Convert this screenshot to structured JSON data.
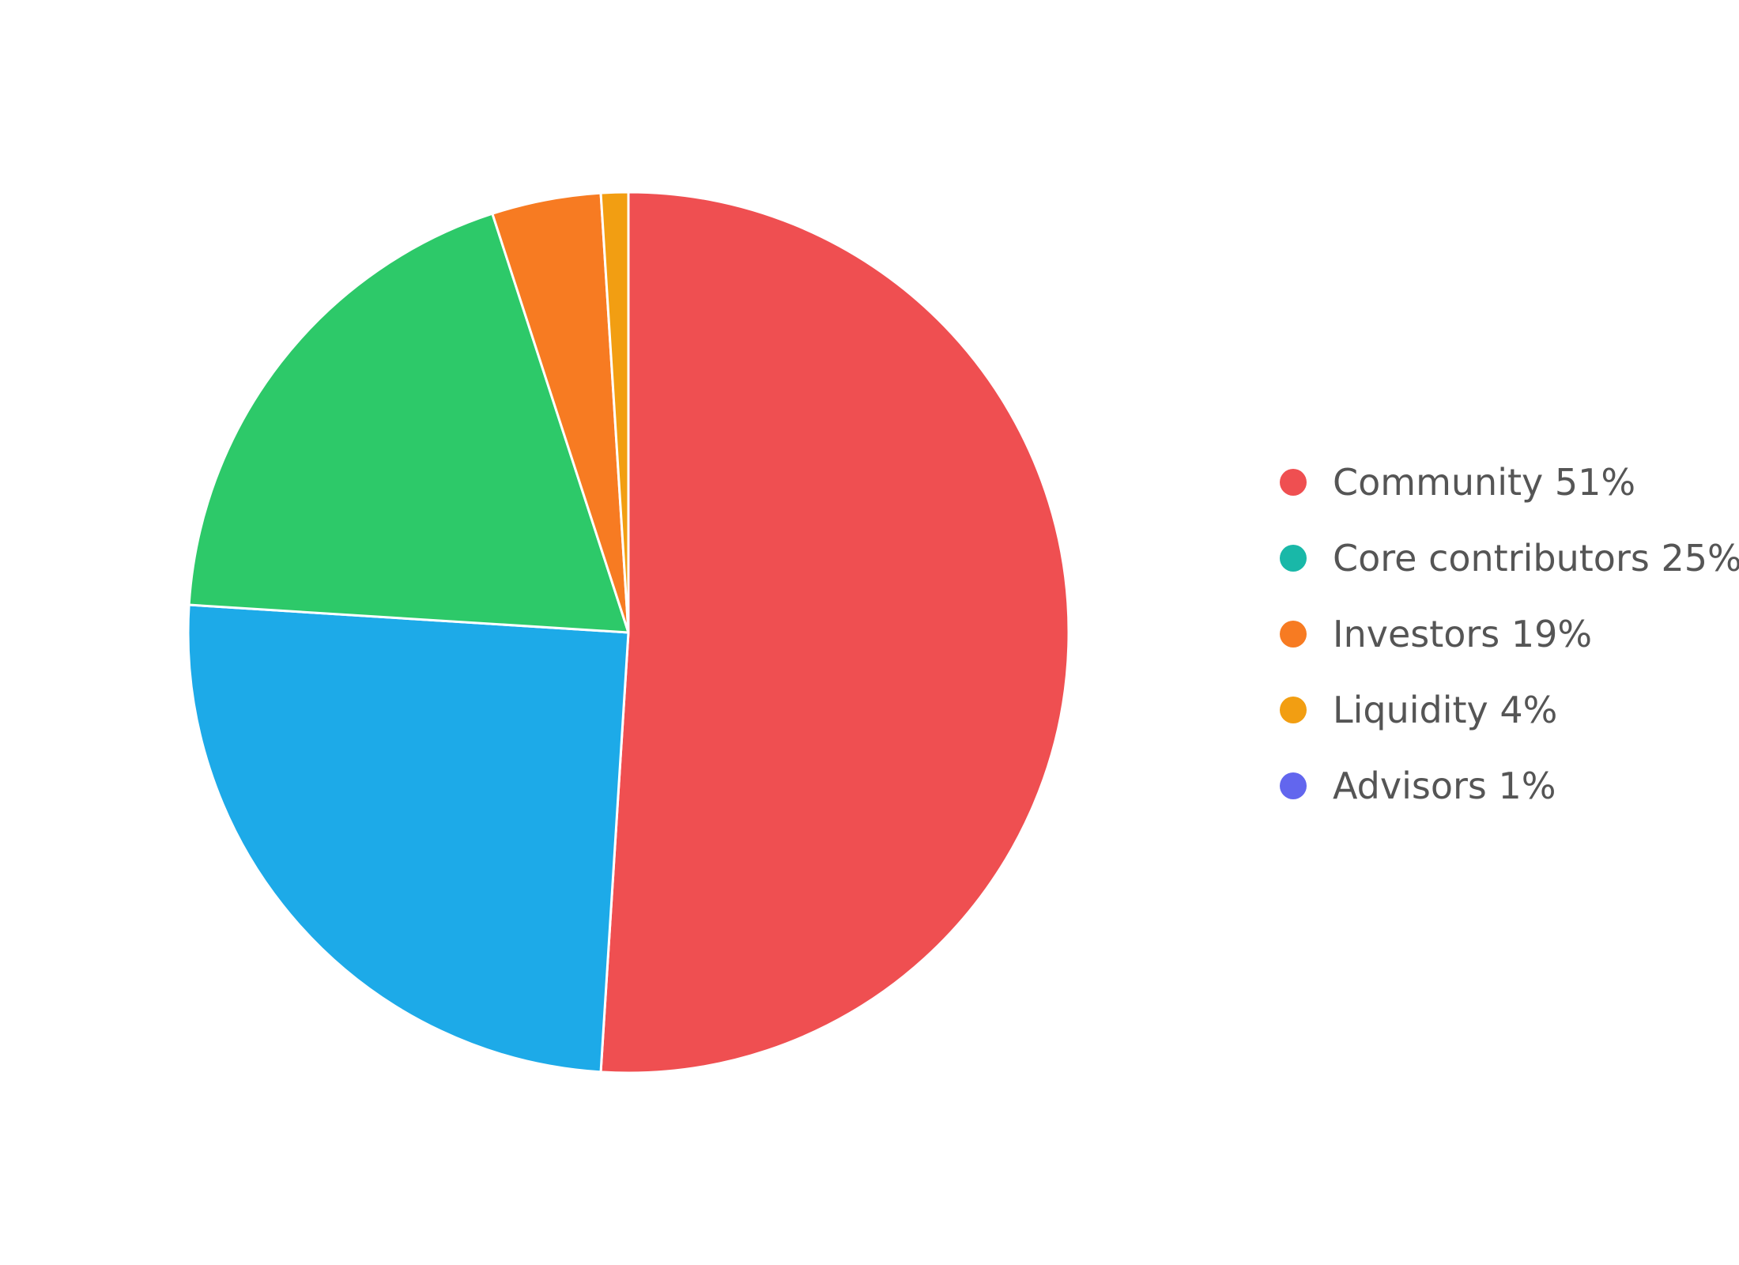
{
  "chart_data": {
    "type": "pie",
    "start_angle_deg": 0,
    "direction": "clockwise",
    "slices": [
      {
        "label": "Community",
        "value": 51,
        "color": "#ef4f51"
      },
      {
        "label": "Core contributors",
        "value": 25,
        "color": "#1daae8"
      },
      {
        "label": "Investors",
        "value": 19,
        "color": "#2dc969"
      },
      {
        "label": "Liquidity",
        "value": 4,
        "color": "#f77b22"
      },
      {
        "label": "Advisors",
        "value": 1,
        "color": "#f29e12"
      }
    ],
    "legend": {
      "placement": "right",
      "items": [
        {
          "text": "Community 51%",
          "color": "#ef4f51"
        },
        {
          "text": "Core contributors 25%",
          "color": "#19b8a8"
        },
        {
          "text": "Investors 19%",
          "color": "#f77b22"
        },
        {
          "text": "Liquidity 4%",
          "color": "#f29e12"
        },
        {
          "text": "Advisors 1%",
          "color": "#6266ee"
        }
      ]
    },
    "slice_border_color": "#ffffff"
  }
}
